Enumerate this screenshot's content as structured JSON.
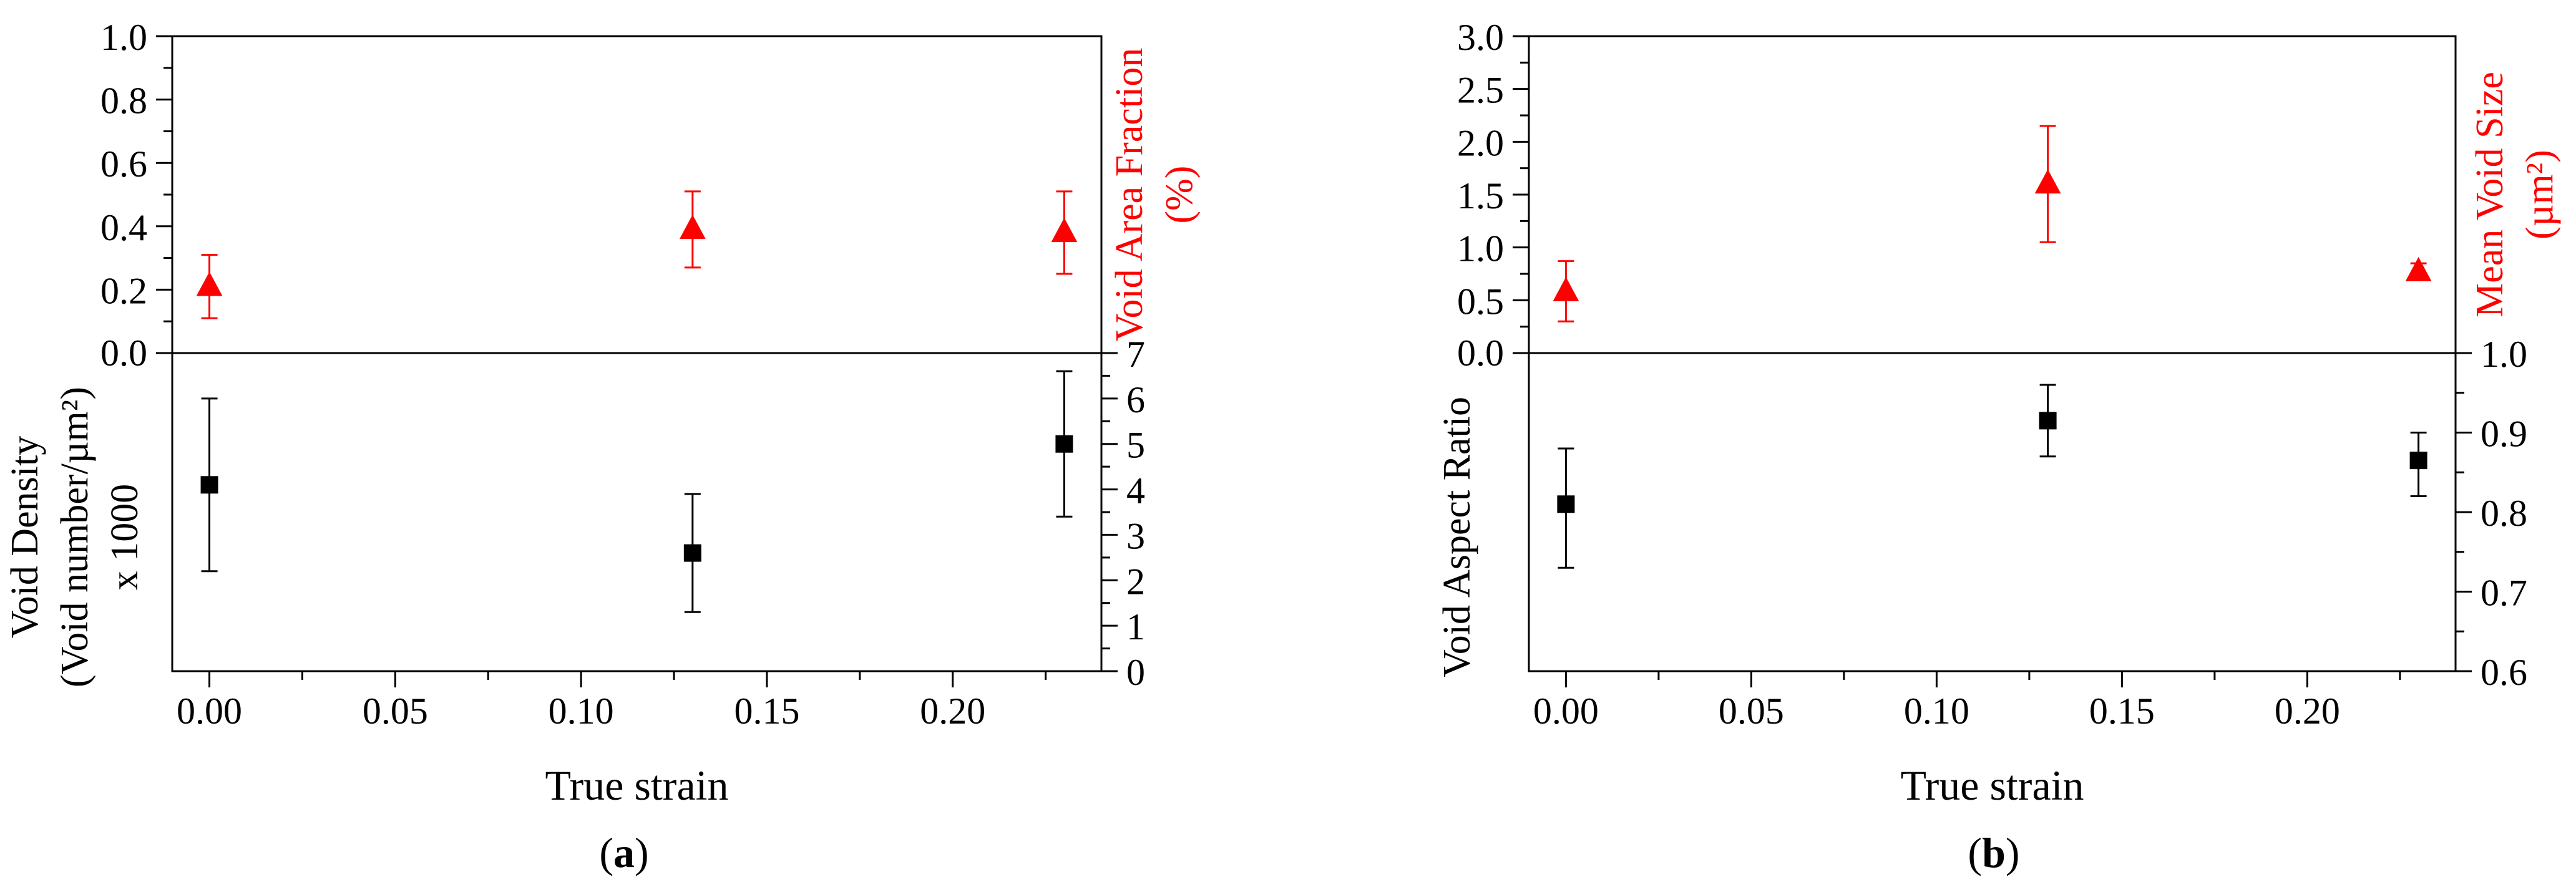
{
  "colors": {
    "upper": "#ff0000",
    "lower": "#000000"
  },
  "chart_data": [
    {
      "panel_label": "a",
      "type": "scatter",
      "xlabel": "True strain",
      "xlim": [
        -0.01,
        0.24
      ],
      "xticks": [
        "0.00",
        "0.05",
        "0.10",
        "0.15",
        "0.20"
      ],
      "upper": {
        "ylabel_lines": [
          "Void Area Fraction",
          "(%)"
        ],
        "ylim": [
          0.0,
          1.0
        ],
        "yticks": [
          "0.0",
          "0.2",
          "0.4",
          "0.6",
          "0.8",
          "1.0"
        ],
        "marker": "triangle",
        "points": [
          {
            "x": 0.0,
            "y": 0.21,
            "err_low": 0.11,
            "err_high": 0.31
          },
          {
            "x": 0.13,
            "y": 0.39,
            "err_low": 0.27,
            "err_high": 0.51
          },
          {
            "x": 0.23,
            "y": 0.38,
            "err_low": 0.25,
            "err_high": 0.51
          }
        ]
      },
      "lower": {
        "ylabel_lines": [
          "Void Density",
          "(Void number/µm²)",
          "x 1000"
        ],
        "ylim": [
          0,
          7
        ],
        "yticks": [
          "0",
          "1",
          "2",
          "3",
          "4",
          "5",
          "6",
          "7"
        ],
        "marker": "square",
        "points": [
          {
            "x": 0.0,
            "y": 4.1,
            "err_low": 2.2,
            "err_high": 6.0
          },
          {
            "x": 0.13,
            "y": 2.6,
            "err_low": 1.3,
            "err_high": 3.9
          },
          {
            "x": 0.23,
            "y": 5.0,
            "err_low": 3.4,
            "err_high": 6.6
          }
        ]
      }
    },
    {
      "panel_label": "b",
      "type": "scatter",
      "xlabel": "True strain",
      "xlim": [
        -0.01,
        0.24
      ],
      "xticks": [
        "0.00",
        "0.05",
        "0.10",
        "0.15",
        "0.20"
      ],
      "upper": {
        "ylabel_lines": [
          "Mean Void Size",
          "(µm²)"
        ],
        "ylim": [
          0.0,
          3.0
        ],
        "yticks": [
          "0.0",
          "0.5",
          "1.0",
          "1.5",
          "2.0",
          "2.5",
          "3.0"
        ],
        "marker": "triangle",
        "points": [
          {
            "x": 0.0,
            "y": 0.58,
            "err_low": 0.3,
            "err_high": 0.87
          },
          {
            "x": 0.13,
            "y": 1.6,
            "err_low": 1.05,
            "err_high": 2.15
          },
          {
            "x": 0.23,
            "y": 0.77,
            "err_low": 0.7,
            "err_high": 0.85
          }
        ]
      },
      "lower": {
        "ylabel_lines": [
          "Void Aspect Ratio"
        ],
        "ylim": [
          0.6,
          1.0
        ],
        "yticks": [
          "0.6",
          "0.7",
          "0.8",
          "0.9",
          "1.0"
        ],
        "marker": "square",
        "points": [
          {
            "x": 0.0,
            "y": 0.81,
            "err_low": 0.73,
            "err_high": 0.88
          },
          {
            "x": 0.13,
            "y": 0.915,
            "err_low": 0.87,
            "err_high": 0.96
          },
          {
            "x": 0.23,
            "y": 0.865,
            "err_low": 0.82,
            "err_high": 0.9
          }
        ]
      }
    }
  ]
}
